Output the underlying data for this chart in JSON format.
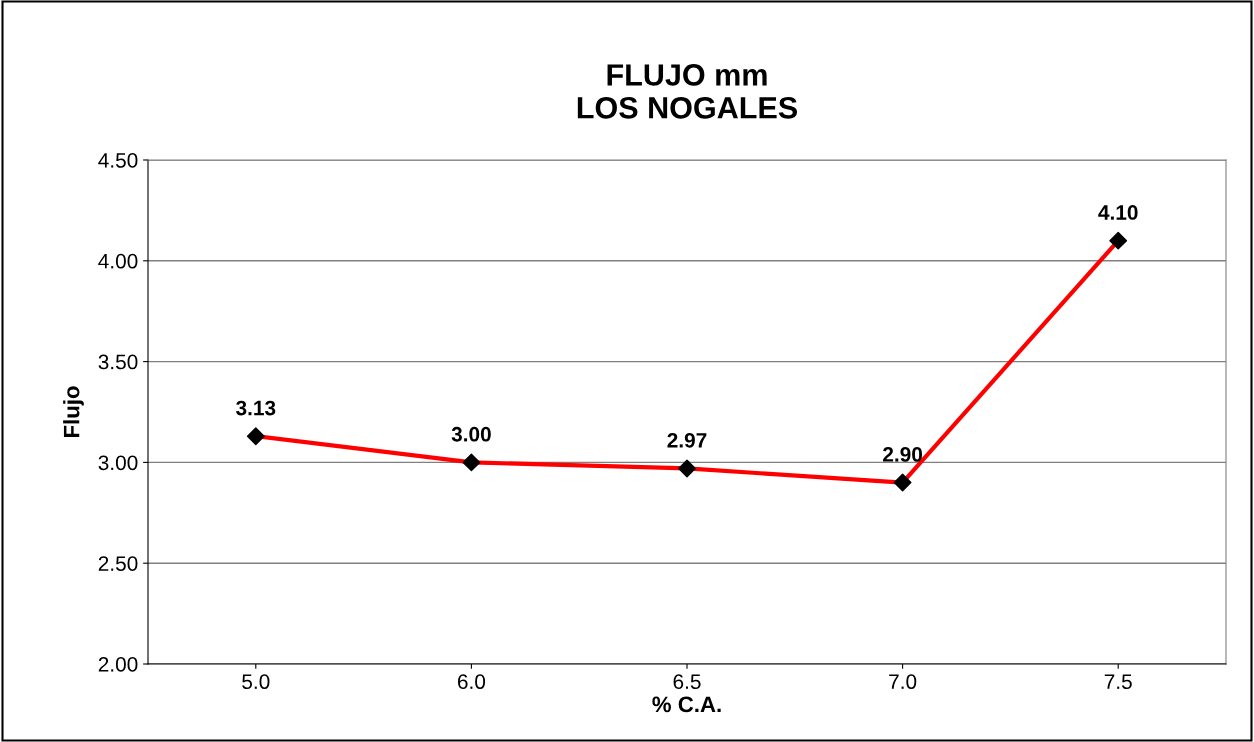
{
  "chart_data": {
    "type": "line",
    "title": "FLUJO mm\nLOS NOGALES",
    "xlabel": "% C.A.",
    "ylabel": "Flujo",
    "categories": [
      "5.0",
      "6.0",
      "6.5",
      "7.0",
      "7.5"
    ],
    "series": [
      {
        "color": "#ff0000",
        "values": [
          3.13,
          3.0,
          2.97,
          2.9,
          4.1
        ],
        "value_labels": [
          "3.13",
          "3.00",
          "2.97",
          "2.90",
          "4.10"
        ]
      }
    ],
    "ylim": [
      2.0,
      4.5
    ],
    "yticks": [
      {
        "value": 2.0,
        "label": "2.00"
      },
      {
        "value": 2.5,
        "label": "2.50"
      },
      {
        "value": 3.0,
        "label": "3.00"
      },
      {
        "value": 3.5,
        "label": "3.50"
      },
      {
        "value": 4.0,
        "label": "4.00"
      },
      {
        "value": 4.5,
        "label": "4.50"
      }
    ],
    "grid": "y",
    "marker": "diamond",
    "legend": false
  }
}
